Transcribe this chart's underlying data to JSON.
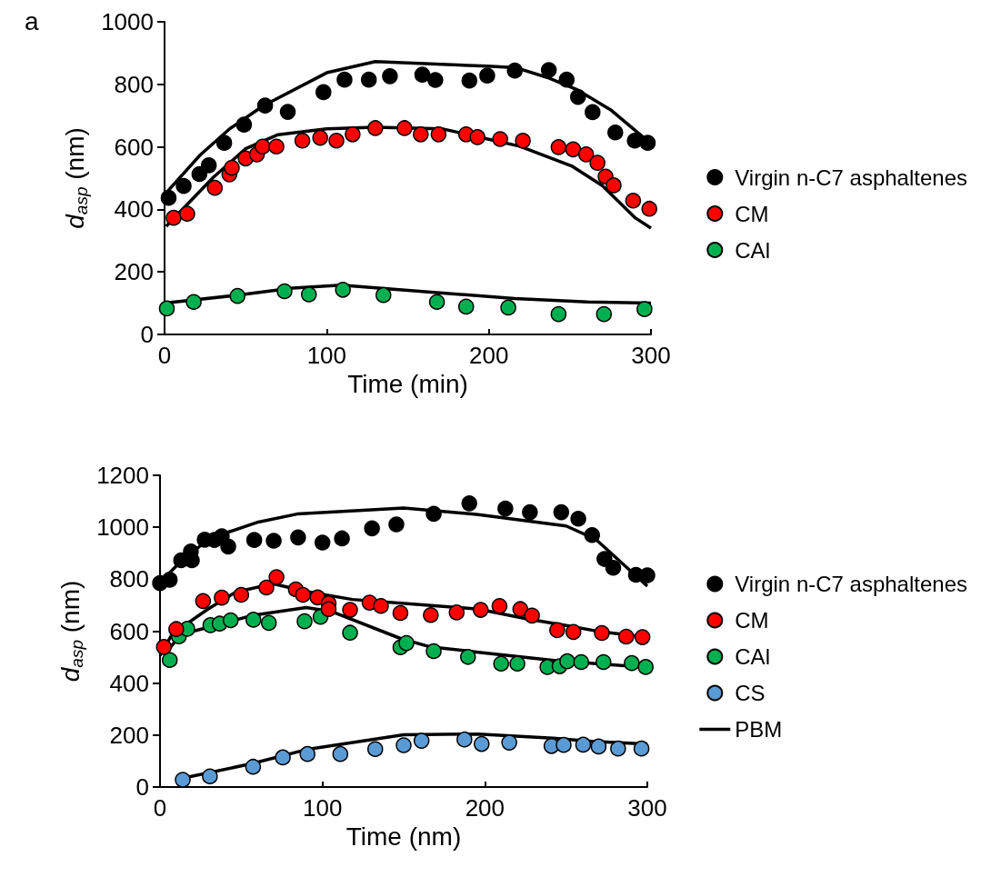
{
  "chart_data": [
    {
      "type": "scatter",
      "title": "a",
      "xlabel": "Time (min)",
      "ylabel": "d$_{asp}$ (nm)",
      "xlim": [
        0,
        300
      ],
      "xticks": [
        0,
        100,
        200,
        300
      ],
      "ylim": [
        0,
        1000
      ],
      "yticks": [
        0,
        200,
        400,
        600,
        800,
        1000
      ],
      "grid": false,
      "legend": "right",
      "marker": "circle",
      "series": [
        {
          "name": "Virgin n-C7 asphaltenes",
          "color": "#000000",
          "x": [
            2.5,
            11.8,
            21.5,
            27.3,
            36.8,
            49,
            62,
            76,
            98,
            111,
            126,
            139,
            159,
            167,
            188,
            199,
            216,
            237,
            248,
            255,
            264,
            278,
            290,
            298
          ],
          "values": [
            437,
            475,
            513,
            541,
            613,
            671,
            732,
            712,
            775,
            815,
            815,
            826,
            831,
            814,
            812,
            828,
            844,
            846,
            815,
            760,
            711,
            646,
            620,
            613
          ]
        },
        {
          "name": "CM",
          "color": "#ff0000",
          "x": [
            5.6,
            14,
            31,
            40,
            41.5,
            50,
            57,
            60.5,
            69,
            85,
            96,
            106,
            116,
            130,
            148,
            158,
            169,
            186,
            193,
            207,
            221,
            243,
            252,
            260,
            267,
            272,
            277,
            289,
            299
          ],
          "values": [
            373,
            386,
            469,
            512,
            533,
            563,
            576,
            601,
            601,
            620,
            629,
            620,
            640,
            660,
            660,
            640,
            640,
            640,
            631,
            625,
            620,
            599,
            592,
            576,
            549,
            505,
            477,
            428,
            402
          ]
        },
        {
          "name": "CAl",
          "color": "#00b050",
          "x": [
            1.4,
            18,
            45,
            74,
            89,
            110,
            135,
            168,
            186,
            212,
            243,
            271,
            296
          ],
          "values": [
            83,
            104,
            123,
            138,
            128,
            143,
            126,
            104,
            89,
            86,
            65,
            65,
            81
          ]
        },
        {
          "type": "line",
          "marker": "none",
          "color": "#000000",
          "x": [
            1,
            22,
            40,
            61,
            100,
            130,
            199,
            217,
            236,
            254,
            275,
            297
          ],
          "values": [
            453,
            574,
            657,
            732,
            837,
            873,
            858,
            853,
            822,
            784,
            719,
            623
          ]
        },
        {
          "type": "line",
          "marker": "none",
          "color": "#000000",
          "x": [
            1,
            30,
            50,
            70,
            100,
            130,
            171,
            219,
            251,
            270,
            290,
            300
          ],
          "values": [
            346,
            502,
            594,
            639,
            658,
            663,
            658,
            602,
            539,
            476,
            374,
            340
          ]
        },
        {
          "type": "line",
          "marker": "none",
          "color": "#000000",
          "x": [
            0,
            44,
            79,
            109,
            168,
            216,
            261,
            300
          ],
          "values": [
            100,
            125,
            148,
            158,
            134,
            115,
            104,
            100
          ]
        }
      ]
    },
    {
      "type": "scatter",
      "xlabel": "Time (nm)",
      "ylabel": "d$_{asp}$ (nm)",
      "xlim": [
        0,
        300
      ],
      "xticks": [
        0,
        100,
        200,
        300
      ],
      "ylim": [
        0,
        1200
      ],
      "yticks": [
        0,
        200,
        400,
        600,
        800,
        1000,
        1200
      ],
      "grid": false,
      "legend": "right",
      "marker": "circle",
      "series": [
        {
          "name": "Virgin n-C7 asphaltenes",
          "color": "#000000",
          "x": [
            0,
            6,
            13,
            19,
            19.6,
            27.5,
            33.5,
            38,
            42,
            58,
            70,
            85,
            100,
            112,
            130.5,
            145.5,
            168.5,
            190.4,
            212.6,
            227.7,
            247,
            257.5,
            266,
            273.6,
            279,
            293,
            300
          ],
          "values": [
            785,
            798,
            873,
            907,
            873,
            952,
            951,
            965,
            926,
            951,
            948,
            961,
            941,
            957,
            996,
            1011,
            1052,
            1092,
            1072,
            1058,
            1058,
            1033,
            970,
            878,
            844,
            817,
            815
          ]
        },
        {
          "name": "CM",
          "color": "#ff0000",
          "x": [
            2.4,
            10,
            26.5,
            38,
            50,
            65.5,
            71.7,
            83.6,
            88,
            97,
            103.8,
            103.8,
            117,
            129,
            136,
            148,
            166.7,
            182.6,
            197.4,
            209,
            221.8,
            229,
            244.5,
            254.5,
            272,
            287,
            297
          ],
          "values": [
            539,
            608,
            716,
            729,
            740,
            768,
            808,
            761,
            740,
            730,
            707,
            685,
            682,
            710,
            697,
            670,
            662,
            672,
            682,
            697,
            685,
            660,
            604,
            597,
            593,
            579,
            577
          ]
        },
        {
          "name": "CAl",
          "color": "#00b050",
          "x": [
            6,
            11.6,
            16.8,
            31,
            36.7,
            43.5,
            57.5,
            67,
            89,
            98.8,
            117,
            148,
            151.7,
            168.5,
            189.6,
            210,
            220,
            238.5,
            246,
            250.7,
            259.3,
            273,
            290.4,
            299
          ],
          "values": [
            489,
            580,
            609,
            623,
            629,
            642,
            644,
            632,
            638,
            655,
            594,
            538,
            554,
            523,
            501,
            475,
            475,
            462,
            465,
            484,
            481,
            481,
            477,
            462
          ]
        },
        {
          "name": "CS",
          "color": "#5b9bd5",
          "x": [
            14,
            30.7,
            57.3,
            75.6,
            90.8,
            111,
            132.5,
            150,
            161,
            187.4,
            198,
            215,
            241,
            248.5,
            260.5,
            270,
            282,
            296.4
          ],
          "values": [
            28,
            41,
            78,
            114,
            127,
            127,
            146,
            161,
            178,
            183,
            166,
            171,
            158,
            162,
            163,
            156,
            148,
            148
          ]
        },
        {
          "name": "PBM",
          "type": "line",
          "marker": "none",
          "color": "#000000",
          "x": [
            0,
            12.6,
            27.5,
            39.5,
            60.5,
            84.4,
            150,
            196,
            250,
            268,
            300
          ],
          "values": [
            788,
            867,
            942,
            976,
            1020,
            1051,
            1074,
            1049,
            1005,
            955,
            773
          ]
        },
        {
          "type": "line",
          "marker": "none",
          "color": "#000000",
          "x": [
            0,
            7.6,
            29.5,
            46.5,
            69.5,
            90.4,
            118.4,
            156,
            196,
            226,
            250,
            272,
            298
          ],
          "values": [
            506,
            590,
            685,
            750,
            783,
            752,
            722,
            704,
            685,
            647,
            622,
            597,
            578
          ]
        },
        {
          "type": "line",
          "marker": "none",
          "color": "#000000",
          "x": [
            2.6,
            11.6,
            20.6,
            56.5,
            90,
            106,
            148,
            166,
            196,
            244,
            299
          ],
          "values": [
            509,
            578,
            600,
            660,
            691,
            675,
            572,
            540,
            519,
            486,
            461
          ]
        },
        {
          "type": "line",
          "marker": "none",
          "color": "#000000",
          "x": [
            14,
            56.5,
            90,
            150,
            196,
            242,
            266,
            300
          ],
          "values": [
            34,
            90,
            144,
            201,
            204,
            188,
            176,
            165
          ]
        }
      ]
    }
  ]
}
